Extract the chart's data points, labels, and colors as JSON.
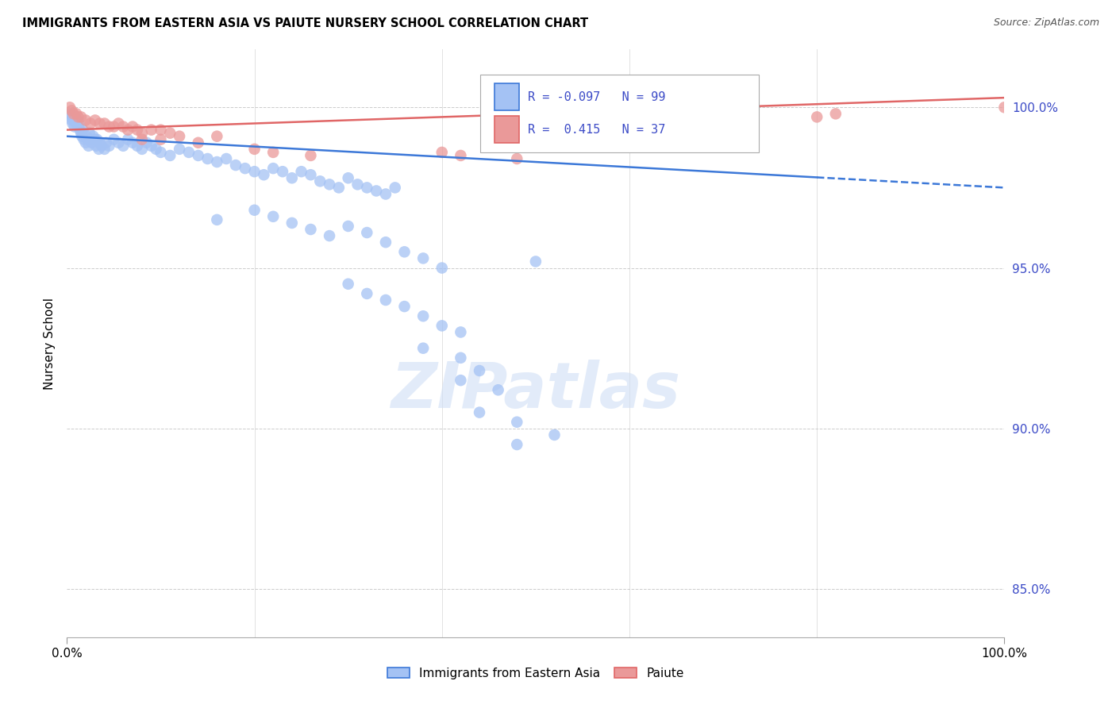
{
  "title": "IMMIGRANTS FROM EASTERN ASIA VS PAIUTE NURSERY SCHOOL CORRELATION CHART",
  "source": "Source: ZipAtlas.com",
  "ylabel": "Nursery School",
  "yticks": [
    85.0,
    90.0,
    95.0,
    100.0
  ],
  "xlim": [
    0.0,
    100.0
  ],
  "ylim": [
    83.5,
    101.8
  ],
  "legend_blue_label": "Immigrants from Eastern Asia",
  "legend_pink_label": "Paiute",
  "R_blue": -0.097,
  "N_blue": 99,
  "R_pink": 0.415,
  "N_pink": 37,
  "blue_color": "#a4c2f4",
  "pink_color": "#ea9999",
  "blue_line_color": "#3c78d8",
  "pink_line_color": "#e06666",
  "blue_line_y0": 99.1,
  "blue_line_y100": 97.5,
  "pink_line_y0": 99.3,
  "pink_line_y100": 100.3,
  "blue_scatter": [
    [
      0.3,
      99.8
    ],
    [
      0.4,
      99.7
    ],
    [
      0.5,
      99.6
    ],
    [
      0.6,
      99.5
    ],
    [
      0.7,
      99.6
    ],
    [
      0.8,
      99.4
    ],
    [
      0.9,
      99.7
    ],
    [
      1.0,
      99.5
    ],
    [
      1.1,
      99.6
    ],
    [
      1.2,
      99.4
    ],
    [
      1.3,
      99.5
    ],
    [
      1.4,
      99.3
    ],
    [
      1.5,
      99.2
    ],
    [
      1.6,
      99.1
    ],
    [
      1.7,
      99.3
    ],
    [
      1.8,
      99.0
    ],
    [
      2.0,
      98.9
    ],
    [
      2.1,
      99.1
    ],
    [
      2.2,
      99.0
    ],
    [
      2.3,
      98.8
    ],
    [
      2.4,
      99.2
    ],
    [
      2.5,
      99.0
    ],
    [
      2.6,
      98.9
    ],
    [
      2.8,
      99.1
    ],
    [
      3.0,
      99.0
    ],
    [
      3.1,
      98.8
    ],
    [
      3.2,
      99.0
    ],
    [
      3.4,
      98.7
    ],
    [
      3.5,
      98.9
    ],
    [
      3.7,
      98.8
    ],
    [
      4.0,
      98.7
    ],
    [
      4.2,
      98.9
    ],
    [
      4.5,
      98.8
    ],
    [
      5.0,
      99.0
    ],
    [
      5.5,
      98.9
    ],
    [
      6.0,
      98.8
    ],
    [
      6.5,
      99.0
    ],
    [
      7.0,
      98.9
    ],
    [
      7.5,
      98.8
    ],
    [
      8.0,
      98.7
    ],
    [
      8.5,
      98.9
    ],
    [
      9.0,
      98.8
    ],
    [
      9.5,
      98.7
    ],
    [
      10.0,
      98.6
    ],
    [
      11.0,
      98.5
    ],
    [
      12.0,
      98.7
    ],
    [
      13.0,
      98.6
    ],
    [
      14.0,
      98.5
    ],
    [
      15.0,
      98.4
    ],
    [
      16.0,
      98.3
    ],
    [
      17.0,
      98.4
    ],
    [
      18.0,
      98.2
    ],
    [
      19.0,
      98.1
    ],
    [
      20.0,
      98.0
    ],
    [
      21.0,
      97.9
    ],
    [
      22.0,
      98.1
    ],
    [
      23.0,
      98.0
    ],
    [
      24.0,
      97.8
    ],
    [
      25.0,
      98.0
    ],
    [
      26.0,
      97.9
    ],
    [
      27.0,
      97.7
    ],
    [
      28.0,
      97.6
    ],
    [
      29.0,
      97.5
    ],
    [
      30.0,
      97.8
    ],
    [
      31.0,
      97.6
    ],
    [
      32.0,
      97.5
    ],
    [
      33.0,
      97.4
    ],
    [
      34.0,
      97.3
    ],
    [
      35.0,
      97.5
    ],
    [
      16.0,
      96.5
    ],
    [
      20.0,
      96.8
    ],
    [
      22.0,
      96.6
    ],
    [
      24.0,
      96.4
    ],
    [
      26.0,
      96.2
    ],
    [
      28.0,
      96.0
    ],
    [
      30.0,
      96.3
    ],
    [
      32.0,
      96.1
    ],
    [
      34.0,
      95.8
    ],
    [
      36.0,
      95.5
    ],
    [
      38.0,
      95.3
    ],
    [
      40.0,
      95.0
    ],
    [
      30.0,
      94.5
    ],
    [
      32.0,
      94.2
    ],
    [
      34.0,
      94.0
    ],
    [
      36.0,
      93.8
    ],
    [
      38.0,
      93.5
    ],
    [
      40.0,
      93.2
    ],
    [
      42.0,
      93.0
    ],
    [
      38.0,
      92.5
    ],
    [
      42.0,
      92.2
    ],
    [
      44.0,
      91.8
    ],
    [
      42.0,
      91.5
    ],
    [
      46.0,
      91.2
    ],
    [
      44.0,
      90.5
    ],
    [
      48.0,
      90.2
    ],
    [
      50.0,
      95.2
    ],
    [
      52.0,
      89.8
    ],
    [
      48.0,
      89.5
    ]
  ],
  "pink_scatter": [
    [
      0.3,
      100.0
    ],
    [
      0.5,
      99.9
    ],
    [
      0.7,
      99.8
    ],
    [
      1.0,
      99.8
    ],
    [
      1.2,
      99.7
    ],
    [
      1.5,
      99.7
    ],
    [
      2.0,
      99.6
    ],
    [
      2.5,
      99.5
    ],
    [
      3.0,
      99.6
    ],
    [
      3.5,
      99.5
    ],
    [
      4.0,
      99.5
    ],
    [
      4.5,
      99.4
    ],
    [
      5.0,
      99.4
    ],
    [
      5.5,
      99.5
    ],
    [
      6.0,
      99.4
    ],
    [
      6.5,
      99.3
    ],
    [
      7.0,
      99.4
    ],
    [
      7.5,
      99.3
    ],
    [
      8.0,
      99.2
    ],
    [
      9.0,
      99.3
    ],
    [
      10.0,
      99.3
    ],
    [
      11.0,
      99.2
    ],
    [
      12.0,
      99.1
    ],
    [
      8.0,
      99.0
    ],
    [
      10.0,
      99.0
    ],
    [
      14.0,
      98.9
    ],
    [
      16.0,
      99.1
    ],
    [
      20.0,
      98.7
    ],
    [
      22.0,
      98.6
    ],
    [
      26.0,
      98.5
    ],
    [
      40.0,
      98.6
    ],
    [
      42.0,
      98.5
    ],
    [
      48.0,
      98.4
    ],
    [
      80.0,
      99.7
    ],
    [
      82.0,
      99.8
    ],
    [
      100.0,
      100.0
    ]
  ]
}
